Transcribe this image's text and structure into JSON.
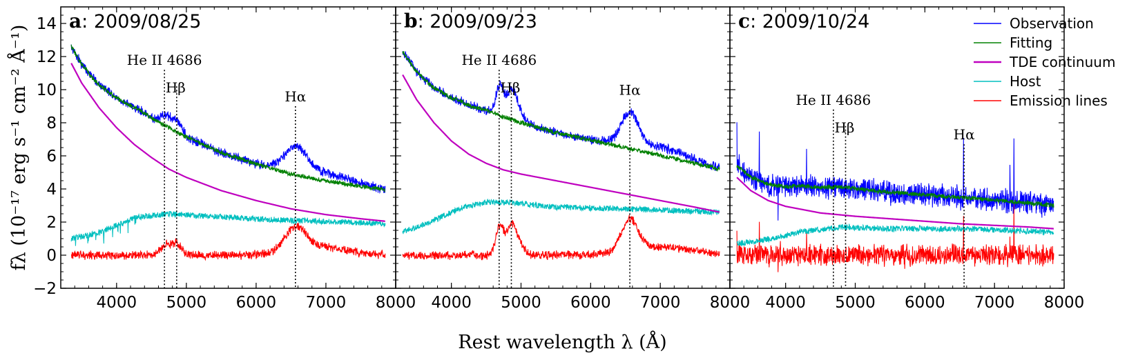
{
  "chart_data": {
    "type": "line",
    "figure": {
      "xlabel": "Rest wavelength λ (Å)",
      "ylabel": "fλ (10⁻¹⁷ erg s⁻¹ cm⁻² Å⁻¹)",
      "xlim": [
        3200,
        8000
      ],
      "ylim": [
        -2,
        15
      ],
      "xticks": [
        4000,
        5000,
        6000,
        7000,
        8000
      ],
      "yticks": [
        -2,
        0,
        2,
        4,
        6,
        8,
        10,
        12,
        14
      ],
      "xtick_labels": [
        "4000",
        "5000",
        "6000",
        "7000",
        "8000"
      ],
      "ytick_labels": [
        "−2",
        "0",
        "2",
        "4",
        "6",
        "8",
        "10",
        "12",
        "14"
      ],
      "legend": {
        "placement": "top-right (panel c)",
        "entries": [
          {
            "label": "Observation",
            "color": "#0000ff"
          },
          {
            "label": "Fitting",
            "color": "#008000"
          },
          {
            "label": "TDE continuum",
            "color": "#bf00bf"
          },
          {
            "label": "Host",
            "color": "#00bfbf"
          },
          {
            "label": "Emission lines",
            "color": "#ff0000"
          }
        ]
      }
    },
    "panels": [
      {
        "letter": "a",
        "date": ": 2009/08/25",
        "xrange": [
          3350,
          7850
        ],
        "tde": [
          [
            3350,
            11.6
          ],
          [
            3500,
            10.4
          ],
          [
            3750,
            8.9
          ],
          [
            4000,
            7.7
          ],
          [
            4250,
            6.7
          ],
          [
            4500,
            5.9
          ],
          [
            4750,
            5.2
          ],
          [
            5000,
            4.7
          ],
          [
            5500,
            3.9
          ],
          [
            6000,
            3.3
          ],
          [
            6500,
            2.8
          ],
          [
            7000,
            2.45
          ],
          [
            7500,
            2.2
          ],
          [
            7850,
            2.05
          ]
        ],
        "host": [
          [
            3350,
            1.0
          ],
          [
            3700,
            1.3
          ],
          [
            4000,
            1.8
          ],
          [
            4300,
            2.3
          ],
          [
            4750,
            2.5
          ],
          [
            5500,
            2.3
          ],
          [
            6500,
            2.1
          ],
          [
            7300,
            2.0
          ],
          [
            7850,
            1.9
          ]
        ],
        "features": [
          {
            "center": 4700,
            "width": 70,
            "amp": 0.6
          },
          {
            "center": 4861,
            "width": 70,
            "amp": 0.7
          },
          {
            "center": 6563,
            "width": 150,
            "amp": 1.4
          },
          {
            "center": 6900,
            "width": 400,
            "amp": 0.5
          }
        ],
        "markers": [
          {
            "wave": 4686,
            "label": "He II 4686",
            "top": 11.2
          },
          {
            "wave": 4861,
            "label": "Hβ",
            "top": 10.2
          },
          {
            "wave": 6563,
            "label": "Hα",
            "top": 9.0
          }
        ]
      },
      {
        "letter": "b",
        "date": ": 2009/09/23",
        "xrange": [
          3300,
          7850
        ],
        "tde": [
          [
            3300,
            10.9
          ],
          [
            3500,
            9.4
          ],
          [
            3750,
            8.0
          ],
          [
            4000,
            6.9
          ],
          [
            4250,
            6.1
          ],
          [
            4500,
            5.55
          ],
          [
            4750,
            5.15
          ],
          [
            5000,
            4.9
          ],
          [
            5500,
            4.5
          ],
          [
            6000,
            4.1
          ],
          [
            6500,
            3.7
          ],
          [
            7000,
            3.3
          ],
          [
            7500,
            2.9
          ],
          [
            7850,
            2.6
          ]
        ],
        "host": [
          [
            3300,
            1.4
          ],
          [
            3700,
            2.0
          ],
          [
            4100,
            2.8
          ],
          [
            4500,
            3.2
          ],
          [
            4800,
            3.2
          ],
          [
            5500,
            2.9
          ],
          [
            6500,
            2.8
          ],
          [
            7850,
            2.6
          ]
        ],
        "features": [
          {
            "center": 4700,
            "width": 60,
            "amp": 1.8
          },
          {
            "center": 4861,
            "width": 60,
            "amp": 1.4
          },
          {
            "center": 4950,
            "width": 80,
            "amp": 0.8
          },
          {
            "center": 6563,
            "width": 120,
            "amp": 1.9
          },
          {
            "center": 7000,
            "width": 450,
            "amp": 0.5
          }
        ],
        "markers": [
          {
            "wave": 4686,
            "label": "He II 4686",
            "top": 11.2
          },
          {
            "wave": 4861,
            "label": "Hβ",
            "top": 10.2
          },
          {
            "wave": 6563,
            "label": "Hα",
            "top": 9.4
          }
        ]
      },
      {
        "letter": "c",
        "date": ": 2009/10/24",
        "xrange": [
          3300,
          7850
        ],
        "tde": [
          [
            3300,
            4.7
          ],
          [
            3500,
            3.9
          ],
          [
            3750,
            3.3
          ],
          [
            4000,
            2.95
          ],
          [
            4500,
            2.55
          ],
          [
            5000,
            2.35
          ],
          [
            5500,
            2.2
          ],
          [
            6000,
            2.05
          ],
          [
            6500,
            1.9
          ],
          [
            7000,
            1.8
          ],
          [
            7500,
            1.7
          ],
          [
            7850,
            1.6
          ]
        ],
        "host": [
          [
            3300,
            0.7
          ],
          [
            3800,
            1.0
          ],
          [
            4200,
            1.4
          ],
          [
            4800,
            1.7
          ],
          [
            5500,
            1.6
          ],
          [
            6500,
            1.6
          ],
          [
            7850,
            1.4
          ]
        ],
        "features": [],
        "markers": [
          {
            "wave": 4686,
            "label": "He II 4686",
            "top": 8.8
          },
          {
            "wave": 4861,
            "label": "Hβ",
            "top": 7.8
          },
          {
            "wave": 6563,
            "label": "Hα",
            "top": 6.7
          }
        ]
      }
    ]
  }
}
